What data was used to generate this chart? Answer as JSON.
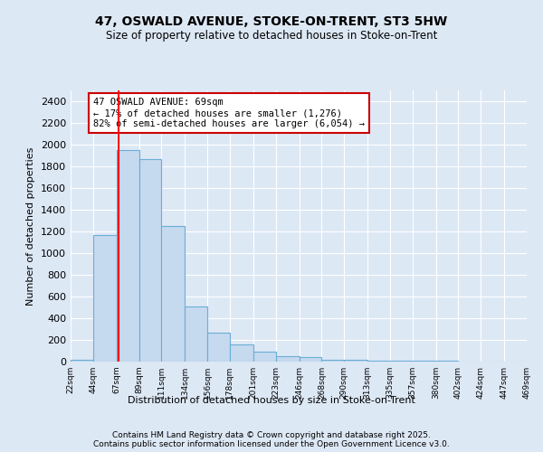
{
  "title1": "47, OSWALD AVENUE, STOKE-ON-TRENT, ST3 5HW",
  "title2": "Size of property relative to detached houses in Stoke-on-Trent",
  "xlabel": "Distribution of detached houses by size in Stoke-on-Trent",
  "ylabel": "Number of detached properties",
  "bin_edges": [
    22,
    44,
    67,
    89,
    111,
    134,
    156,
    178,
    201,
    223,
    246,
    268,
    290,
    313,
    335,
    357,
    380,
    402,
    424,
    447,
    469
  ],
  "bar_heights": [
    20,
    1170,
    1950,
    1870,
    1250,
    510,
    270,
    155,
    90,
    50,
    40,
    20,
    15,
    10,
    8,
    5,
    5,
    4,
    3,
    2
  ],
  "bar_color": "#c5d9ef",
  "bar_edge_color": "#6baed6",
  "background_color": "#dde8f5",
  "grid_color": "#ffffff",
  "red_line_x": 69,
  "annotation_text": "47 OSWALD AVENUE: 69sqm\n← 17% of detached houses are smaller (1,276)\n82% of semi-detached houses are larger (6,054) →",
  "annotation_box_color": "#ffffff",
  "annotation_border_color": "#cc0000",
  "ylim": [
    0,
    2500
  ],
  "yticks": [
    0,
    200,
    400,
    600,
    800,
    1000,
    1200,
    1400,
    1600,
    1800,
    2000,
    2200,
    2400
  ],
  "footnote1": "Contains HM Land Registry data © Crown copyright and database right 2025.",
  "footnote2": "Contains public sector information licensed under the Open Government Licence v3.0."
}
